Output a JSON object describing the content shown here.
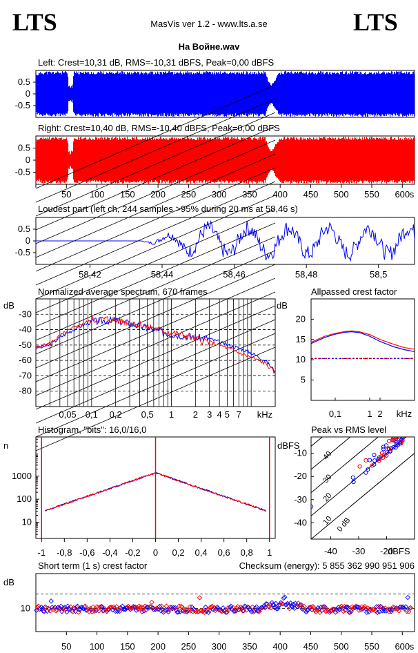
{
  "header": {
    "logo_left": "LTS",
    "logo_right": "LTS",
    "app_title": "MasVis ver 1.2 - www.lts.a.se",
    "file_name": "На Войне.wav"
  },
  "colors": {
    "left": "#0000ff",
    "right": "#ff0000"
  },
  "chart_data": [
    {
      "id": "left_waveform",
      "type": "area",
      "title": "Left: Crest=10,31 dB, RMS=-10,31 dBFS, Peak=0,00 dBFS",
      "y_ticks": [
        "0.5",
        "0",
        "-0.5"
      ],
      "ylim": [
        -1,
        1
      ],
      "envelope_x_s": [
        0,
        5,
        10,
        40,
        50,
        52,
        55,
        58,
        62,
        66,
        70,
        100,
        200,
        300,
        375,
        380,
        385,
        390,
        395,
        400,
        420,
        500,
        600,
        620
      ],
      "envelope_amp": [
        0.9,
        0.95,
        1,
        1,
        1,
        0.8,
        0.3,
        0.5,
        1,
        1,
        1,
        1,
        1,
        1,
        1,
        0.6,
        0.4,
        0.6,
        0.85,
        1,
        1,
        1,
        1,
        1
      ]
    },
    {
      "id": "right_waveform",
      "type": "area",
      "title": "Right: Crest=10,40 dB, RMS=-10,40 dBFS, Peak=0,00 dBFS",
      "x_ticks": [
        "50",
        "100",
        "150",
        "200",
        "250",
        "300",
        "350",
        "400",
        "450",
        "500",
        "550",
        "600",
        "s"
      ],
      "y_ticks": [
        "0.5",
        "0",
        "-0.5"
      ],
      "ylim": [
        -1,
        1
      ],
      "xlim": [
        0,
        620
      ]
    },
    {
      "id": "loudest_part",
      "type": "line",
      "title": "Loudest part (left  ch, 244 samples >95% during 20 ms at 58,46 s)",
      "x_ticks": [
        "58,42",
        "58,44",
        "58,46",
        "58,48",
        "58,5"
      ],
      "y_ticks": [
        "0.5",
        "0",
        "-0.5"
      ],
      "xlim": [
        58.405,
        58.51
      ],
      "ylim": [
        -1,
        1
      ]
    },
    {
      "id": "avg_spectrum",
      "type": "line",
      "title": "Normalized average spectrum, 670 frames",
      "ylabel": "dB",
      "y_ticks": [
        "-30",
        "-40",
        "-50",
        "-60",
        "-70",
        "-80"
      ],
      "x_ticks": [
        "0,05",
        "0,1",
        "0,2",
        "0,5",
        "1",
        "2",
        "3",
        "4",
        "5",
        "7",
        "kHz"
      ],
      "ylim": [
        -90,
        -20
      ],
      "x_khz": [
        0.02,
        0.03,
        0.04,
        0.05,
        0.07,
        0.1,
        0.15,
        0.2,
        0.3,
        0.5,
        0.7,
        1,
        1.5,
        2,
        3,
        4,
        5,
        7,
        10,
        15,
        20
      ],
      "left_db": [
        -52,
        -50,
        -45,
        -42,
        -38,
        -35,
        -34,
        -34,
        -36,
        -39,
        -41,
        -43,
        -44,
        -45,
        -46,
        -48,
        -50,
        -52,
        -55,
        -60,
        -67
      ],
      "right_db": [
        -52,
        -49,
        -44,
        -41,
        -37,
        -34,
        -33,
        -34,
        -35,
        -38,
        -40,
        -42,
        -44,
        -46,
        -48,
        -50,
        -52,
        -55,
        -58,
        -62,
        -68
      ]
    },
    {
      "id": "allpassed_crest",
      "type": "line",
      "title": "Allpassed crest factor",
      "ylabel": "dB",
      "y_ticks": [
        "20",
        "15",
        "10",
        "5"
      ],
      "x_ticks": [
        "0,1",
        "1",
        "2",
        "kHz"
      ],
      "ylim": [
        0,
        25
      ],
      "x_khz": [
        0.02,
        0.05,
        0.1,
        0.2,
        0.3,
        0.5,
        1,
        2,
        5,
        10,
        20
      ],
      "left": [
        14,
        15.5,
        16.3,
        16.8,
        16.9,
        16.7,
        15.8,
        14.5,
        13.2,
        12.5,
        12.0
      ],
      "right": [
        14.3,
        15.8,
        16.5,
        17.0,
        17.1,
        16.9,
        16.2,
        15.0,
        13.8,
        13.0,
        12.6
      ],
      "reference": 10.3
    },
    {
      "id": "histogram",
      "type": "line",
      "title": "Histogram, \"bits\": 16,0/16,0",
      "ylabel": "n",
      "y_ticks": [
        "1000",
        "100",
        "10"
      ],
      "x_ticks": [
        "-1",
        "-0,8",
        "-0,6",
        "-0,4",
        "-0,2",
        "0",
        "0,2",
        "0,4",
        "0,6",
        "0,8",
        "1"
      ],
      "xlim": [
        -1.05,
        1.05
      ]
    },
    {
      "id": "peak_vs_rms",
      "type": "scatter",
      "title": "Peak vs RMS level",
      "ylabel": "dBFS",
      "xlabel": "dBFS",
      "y_ticks": [
        "-10",
        "-20",
        "-30",
        "-40"
      ],
      "x_ticks": [
        "-40",
        "-30",
        "-20",
        "dBFS"
      ],
      "diag_labels": [
        "40",
        "30",
        "20",
        "10",
        "0 dB"
      ],
      "xlim": [
        -47,
        -10
      ],
      "ylim": [
        -47,
        -3
      ]
    },
    {
      "id": "short_term_crest",
      "type": "scatter",
      "title": "Short term (1 s) crest factor",
      "checksum": "Checksum (energy):  5 855 362 990 951 906",
      "ylabel": "dB",
      "y_ticks": [
        "10"
      ],
      "x_ticks": [
        "50",
        "100",
        "150",
        "200",
        "250",
        "300",
        "350",
        "400",
        "450",
        "500",
        "550",
        "600",
        "s"
      ],
      "xlim": [
        0,
        620
      ]
    }
  ]
}
